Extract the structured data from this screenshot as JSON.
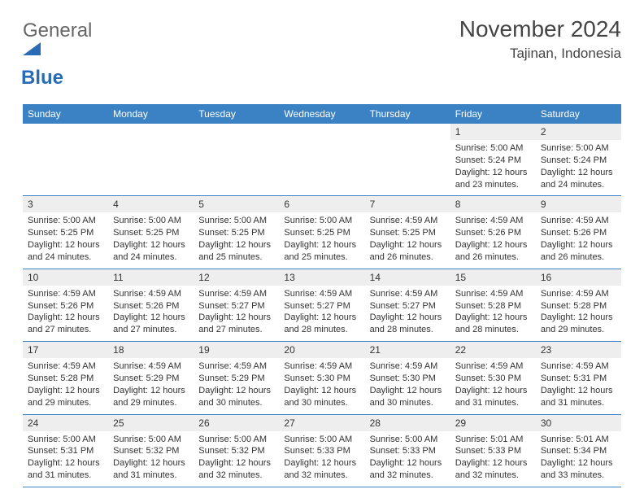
{
  "logo": {
    "general": "General",
    "blue": "Blue"
  },
  "title": "November 2024",
  "location": "Tajinan, Indonesia",
  "colors": {
    "header_bg": "#3b82c4",
    "header_text": "#ffffff",
    "daynum_bg": "#eeeeee",
    "cell_border": "#3b82c4",
    "logo_accent": "#2a6bb5",
    "logo_gray": "#666666"
  },
  "weekdays": [
    "Sunday",
    "Monday",
    "Tuesday",
    "Wednesday",
    "Thursday",
    "Friday",
    "Saturday"
  ],
  "weeks": [
    [
      {
        "n": "",
        "sr": "",
        "ss": "",
        "dl": ""
      },
      {
        "n": "",
        "sr": "",
        "ss": "",
        "dl": ""
      },
      {
        "n": "",
        "sr": "",
        "ss": "",
        "dl": ""
      },
      {
        "n": "",
        "sr": "",
        "ss": "",
        "dl": ""
      },
      {
        "n": "",
        "sr": "",
        "ss": "",
        "dl": ""
      },
      {
        "n": "1",
        "sr": "Sunrise: 5:00 AM",
        "ss": "Sunset: 5:24 PM",
        "dl": "Daylight: 12 hours and 23 minutes."
      },
      {
        "n": "2",
        "sr": "Sunrise: 5:00 AM",
        "ss": "Sunset: 5:24 PM",
        "dl": "Daylight: 12 hours and 24 minutes."
      }
    ],
    [
      {
        "n": "3",
        "sr": "Sunrise: 5:00 AM",
        "ss": "Sunset: 5:25 PM",
        "dl": "Daylight: 12 hours and 24 minutes."
      },
      {
        "n": "4",
        "sr": "Sunrise: 5:00 AM",
        "ss": "Sunset: 5:25 PM",
        "dl": "Daylight: 12 hours and 24 minutes."
      },
      {
        "n": "5",
        "sr": "Sunrise: 5:00 AM",
        "ss": "Sunset: 5:25 PM",
        "dl": "Daylight: 12 hours and 25 minutes."
      },
      {
        "n": "6",
        "sr": "Sunrise: 5:00 AM",
        "ss": "Sunset: 5:25 PM",
        "dl": "Daylight: 12 hours and 25 minutes."
      },
      {
        "n": "7",
        "sr": "Sunrise: 4:59 AM",
        "ss": "Sunset: 5:25 PM",
        "dl": "Daylight: 12 hours and 26 minutes."
      },
      {
        "n": "8",
        "sr": "Sunrise: 4:59 AM",
        "ss": "Sunset: 5:26 PM",
        "dl": "Daylight: 12 hours and 26 minutes."
      },
      {
        "n": "9",
        "sr": "Sunrise: 4:59 AM",
        "ss": "Sunset: 5:26 PM",
        "dl": "Daylight: 12 hours and 26 minutes."
      }
    ],
    [
      {
        "n": "10",
        "sr": "Sunrise: 4:59 AM",
        "ss": "Sunset: 5:26 PM",
        "dl": "Daylight: 12 hours and 27 minutes."
      },
      {
        "n": "11",
        "sr": "Sunrise: 4:59 AM",
        "ss": "Sunset: 5:26 PM",
        "dl": "Daylight: 12 hours and 27 minutes."
      },
      {
        "n": "12",
        "sr": "Sunrise: 4:59 AM",
        "ss": "Sunset: 5:27 PM",
        "dl": "Daylight: 12 hours and 27 minutes."
      },
      {
        "n": "13",
        "sr": "Sunrise: 4:59 AM",
        "ss": "Sunset: 5:27 PM",
        "dl": "Daylight: 12 hours and 28 minutes."
      },
      {
        "n": "14",
        "sr": "Sunrise: 4:59 AM",
        "ss": "Sunset: 5:27 PM",
        "dl": "Daylight: 12 hours and 28 minutes."
      },
      {
        "n": "15",
        "sr": "Sunrise: 4:59 AM",
        "ss": "Sunset: 5:28 PM",
        "dl": "Daylight: 12 hours and 28 minutes."
      },
      {
        "n": "16",
        "sr": "Sunrise: 4:59 AM",
        "ss": "Sunset: 5:28 PM",
        "dl": "Daylight: 12 hours and 29 minutes."
      }
    ],
    [
      {
        "n": "17",
        "sr": "Sunrise: 4:59 AM",
        "ss": "Sunset: 5:28 PM",
        "dl": "Daylight: 12 hours and 29 minutes."
      },
      {
        "n": "18",
        "sr": "Sunrise: 4:59 AM",
        "ss": "Sunset: 5:29 PM",
        "dl": "Daylight: 12 hours and 29 minutes."
      },
      {
        "n": "19",
        "sr": "Sunrise: 4:59 AM",
        "ss": "Sunset: 5:29 PM",
        "dl": "Daylight: 12 hours and 30 minutes."
      },
      {
        "n": "20",
        "sr": "Sunrise: 4:59 AM",
        "ss": "Sunset: 5:30 PM",
        "dl": "Daylight: 12 hours and 30 minutes."
      },
      {
        "n": "21",
        "sr": "Sunrise: 4:59 AM",
        "ss": "Sunset: 5:30 PM",
        "dl": "Daylight: 12 hours and 30 minutes."
      },
      {
        "n": "22",
        "sr": "Sunrise: 4:59 AM",
        "ss": "Sunset: 5:30 PM",
        "dl": "Daylight: 12 hours and 31 minutes."
      },
      {
        "n": "23",
        "sr": "Sunrise: 4:59 AM",
        "ss": "Sunset: 5:31 PM",
        "dl": "Daylight: 12 hours and 31 minutes."
      }
    ],
    [
      {
        "n": "24",
        "sr": "Sunrise: 5:00 AM",
        "ss": "Sunset: 5:31 PM",
        "dl": "Daylight: 12 hours and 31 minutes."
      },
      {
        "n": "25",
        "sr": "Sunrise: 5:00 AM",
        "ss": "Sunset: 5:32 PM",
        "dl": "Daylight: 12 hours and 31 minutes."
      },
      {
        "n": "26",
        "sr": "Sunrise: 5:00 AM",
        "ss": "Sunset: 5:32 PM",
        "dl": "Daylight: 12 hours and 32 minutes."
      },
      {
        "n": "27",
        "sr": "Sunrise: 5:00 AM",
        "ss": "Sunset: 5:33 PM",
        "dl": "Daylight: 12 hours and 32 minutes."
      },
      {
        "n": "28",
        "sr": "Sunrise: 5:00 AM",
        "ss": "Sunset: 5:33 PM",
        "dl": "Daylight: 12 hours and 32 minutes."
      },
      {
        "n": "29",
        "sr": "Sunrise: 5:01 AM",
        "ss": "Sunset: 5:33 PM",
        "dl": "Daylight: 12 hours and 32 minutes."
      },
      {
        "n": "30",
        "sr": "Sunrise: 5:01 AM",
        "ss": "Sunset: 5:34 PM",
        "dl": "Daylight: 12 hours and 33 minutes."
      }
    ]
  ]
}
